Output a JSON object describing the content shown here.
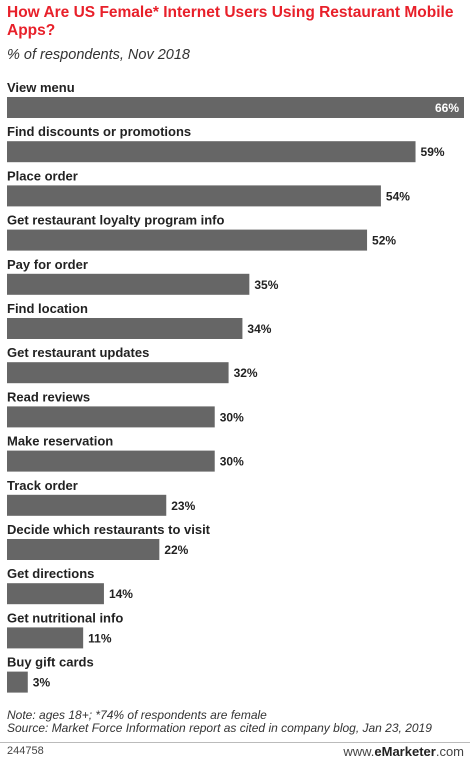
{
  "title": "How Are US Female* Internet Users Using Restaurant Mobile Apps?",
  "subtitle": "% of respondents, Nov 2018",
  "note_line1": "Note: ages 18+; *74% of respondents are female",
  "note_line2": "Source: Market Force Information report as cited in company blog, Jan 23, 2019",
  "chart_id": "244758",
  "brand_prefix": "www.",
  "brand_name": "eMarketer",
  "brand_suffix": ".com",
  "colors": {
    "bar": "#666666",
    "title": "#e8202a"
  },
  "chart_data": {
    "type": "bar",
    "orientation": "horizontal",
    "categories": [
      "View menu",
      "Find discounts or promotions",
      "Place order",
      "Get restaurant loyalty program info",
      "Pay for order",
      "Find location",
      "Get restaurant updates",
      "Read reviews",
      "Make reservation",
      "Track order",
      "Decide which restaurants to visit",
      "Get directions",
      "Get nutritional info",
      "Buy gift cards"
    ],
    "values": [
      66,
      59,
      54,
      52,
      35,
      34,
      32,
      30,
      30,
      23,
      22,
      14,
      11,
      3
    ],
    "value_suffix": "%",
    "xlim": [
      0,
      66
    ],
    "grid": false,
    "legend": "none"
  }
}
